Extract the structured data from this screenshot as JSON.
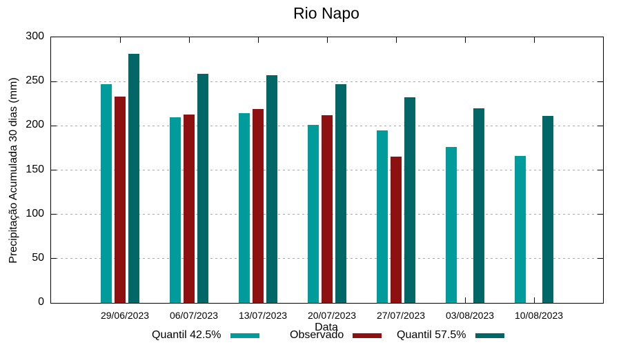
{
  "chart_data": {
    "type": "bar",
    "title": "Rio Napo",
    "xlabel": "Data",
    "ylabel": "Precipitação Acumulada 30 dias (mm)",
    "ylim": [
      0,
      300
    ],
    "yticks": [
      0,
      50,
      100,
      150,
      200,
      250,
      300
    ],
    "grid": true,
    "legend_position": "bottom",
    "categories": [
      "29/06/2023",
      "06/07/2023",
      "13/07/2023",
      "20/07/2023",
      "27/07/2023",
      "03/08/2023",
      "10/08/2023"
    ],
    "series": [
      {
        "name": "Quantil 42.5%",
        "color": "#009C9C",
        "values": [
          247,
          210,
          214,
          201,
          195,
          176,
          166
        ]
      },
      {
        "name": "Observado",
        "color": "#8E1111",
        "values": [
          233,
          213,
          219,
          212,
          165,
          null,
          null
        ]
      },
      {
        "name": "Quantil 57.5%",
        "color": "#006666",
        "values": [
          281,
          259,
          257,
          247,
          232,
          220,
          211
        ]
      }
    ],
    "colors": {
      "axis": "#000000",
      "gridline": "#a9a9a9",
      "background": "#ffffff"
    }
  }
}
